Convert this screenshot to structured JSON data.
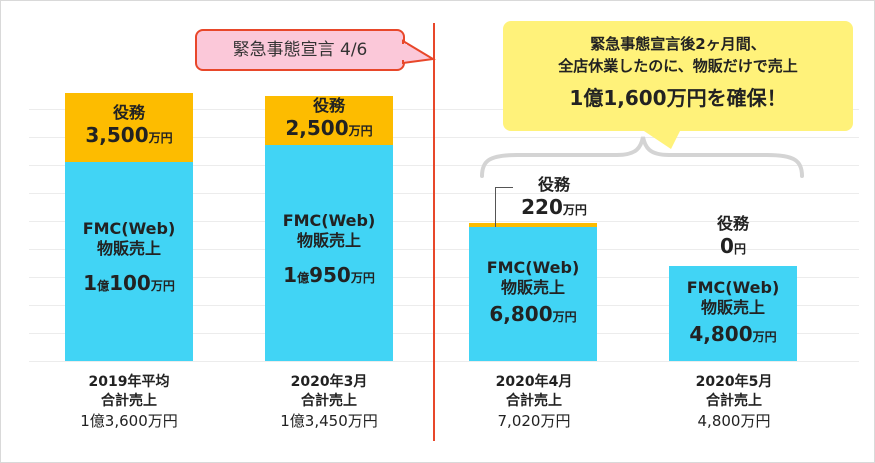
{
  "chart_data": {
    "type": "bar",
    "stacked": true,
    "categories": [
      "2019年平均",
      "2020年3月",
      "2020年4月",
      "2020年5月"
    ],
    "series": [
      {
        "key": "fmc",
        "values": [
          10100,
          10950,
          6800,
          4800
        ],
        "color": "#41d4f5",
        "label_lines": [
          "FMC(Web)",
          "物販売上"
        ],
        "value_labels": [
          {
            "num": "1",
            "unit1": "億",
            "num2": "100",
            "unit2": "万円"
          },
          {
            "num": "1",
            "unit1": "億",
            "num2": "950",
            "unit2": "万円"
          },
          {
            "num": "6,800",
            "unit1": "万円",
            "num2": "",
            "unit2": ""
          },
          {
            "num": "4,800",
            "unit1": "万円",
            "num2": "",
            "unit2": ""
          }
        ]
      },
      {
        "key": "service",
        "values": [
          3500,
          2500,
          220,
          0
        ],
        "color": "#fdbc00",
        "label": "役務",
        "value_labels": [
          {
            "num": "3,500",
            "unit": "万円"
          },
          {
            "num": "2,500",
            "unit": "万円"
          },
          {
            "num": "220",
            "unit": "万円"
          },
          {
            "num": "0",
            "unit": "円"
          }
        ]
      }
    ],
    "category_labels": [
      {
        "line1": "2019年平均",
        "line2": "合計売上",
        "line3": "1億3,600万円"
      },
      {
        "line1": "2020年3月",
        "line2": "合計売上",
        "line3": "1億3,450万円"
      },
      {
        "line1": "2020年4月",
        "line2": "合計売上",
        "line3": "7,020万円"
      },
      {
        "line1": "2020年5月",
        "line2": "合計売上",
        "line3": "4,800万円"
      }
    ],
    "ylim": [
      0,
      14200
    ],
    "grid": true,
    "annotations": {
      "declaration": "緊急事態宣言 4/6",
      "summary_line1": "緊急事態宣言後2ヶ月間、",
      "summary_line2": "全店休業したのに、物販だけで売上",
      "summary_line3": "1億1,600万円を確保！"
    }
  },
  "colors": {
    "divider": "#e8472a",
    "declaration_fill": "#fbc8d9",
    "summary_fill": "#fff27a",
    "grid": "#ececec"
  }
}
